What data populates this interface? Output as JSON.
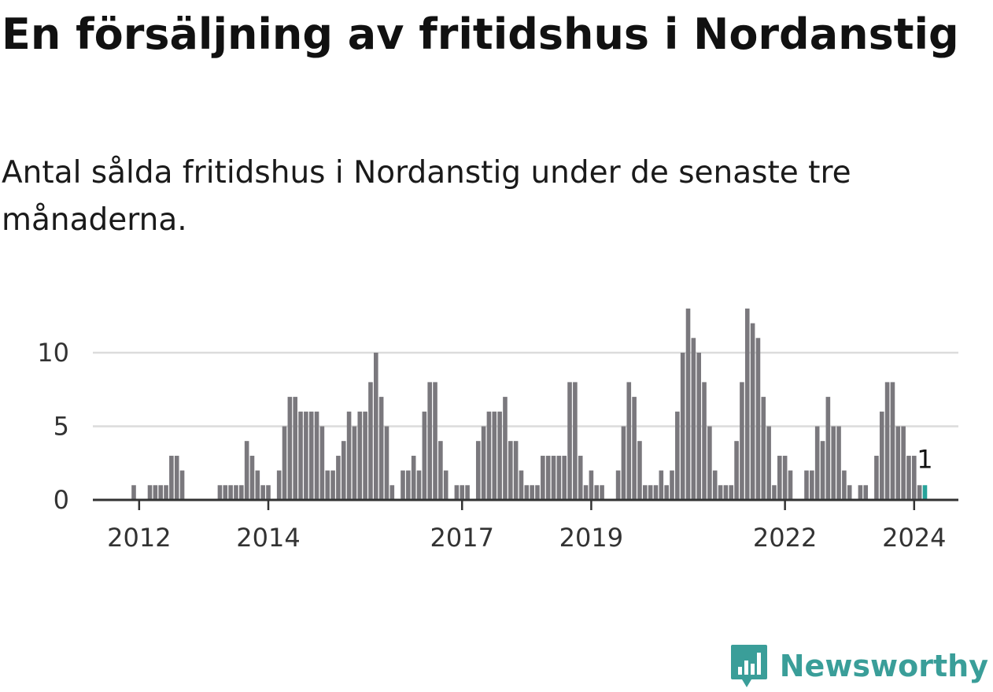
{
  "title": "En försäljning av fritidshus i Nordanstig",
  "subtitle": "Antal sålda fritidshus i Nordanstig under de senaste tre månaderna.",
  "brand": {
    "name": "Newsworthy",
    "icon": "bar-chart-speech-bubble-icon",
    "color": "#3a9e99"
  },
  "colors": {
    "bar": "#7a787d",
    "highlight": "#27a39a",
    "grid": "#dcdcdc",
    "axis": "#333333"
  },
  "chart_data": {
    "type": "bar",
    "x_start": "2011-12",
    "x_end": "2024-03",
    "values": [
      1,
      0,
      0,
      1,
      1,
      1,
      1,
      3,
      3,
      2,
      0,
      0,
      0,
      0,
      0,
      0,
      1,
      1,
      1,
      1,
      1,
      4,
      3,
      2,
      1,
      1,
      0,
      2,
      5,
      7,
      7,
      6,
      6,
      6,
      6,
      5,
      2,
      2,
      3,
      4,
      6,
      5,
      6,
      6,
      8,
      10,
      7,
      5,
      1,
      0,
      2,
      2,
      3,
      2,
      6,
      8,
      8,
      4,
      2,
      0,
      1,
      1,
      1,
      0,
      4,
      5,
      6,
      6,
      6,
      7,
      4,
      4,
      2,
      1,
      1,
      1,
      3,
      3,
      3,
      3,
      3,
      8,
      8,
      3,
      1,
      2,
      1,
      1,
      0,
      0,
      2,
      5,
      8,
      7,
      4,
      1,
      1,
      1,
      2,
      1,
      2,
      6,
      10,
      13,
      11,
      10,
      8,
      5,
      2,
      1,
      1,
      1,
      4,
      8,
      13,
      12,
      11,
      7,
      5,
      1,
      3,
      3,
      2,
      0,
      0,
      2,
      2,
      5,
      4,
      7,
      5,
      5,
      2,
      1,
      0,
      1,
      1,
      0,
      3,
      6,
      8,
      8,
      5,
      5,
      3,
      3,
      1,
      1
    ],
    "highlight_last": true,
    "last_value_label": "1",
    "y_ticks": [
      0,
      5,
      10
    ],
    "ylim": [
      0,
      13
    ],
    "x_ticks": [
      "2012",
      "2014",
      "2017",
      "2019",
      "2022",
      "2024"
    ],
    "x_tick_months": [
      "2012-01",
      "2014-01",
      "2017-01",
      "2019-01",
      "2022-01",
      "2024-01"
    ],
    "grid": true,
    "xlabel": "",
    "ylabel": ""
  }
}
